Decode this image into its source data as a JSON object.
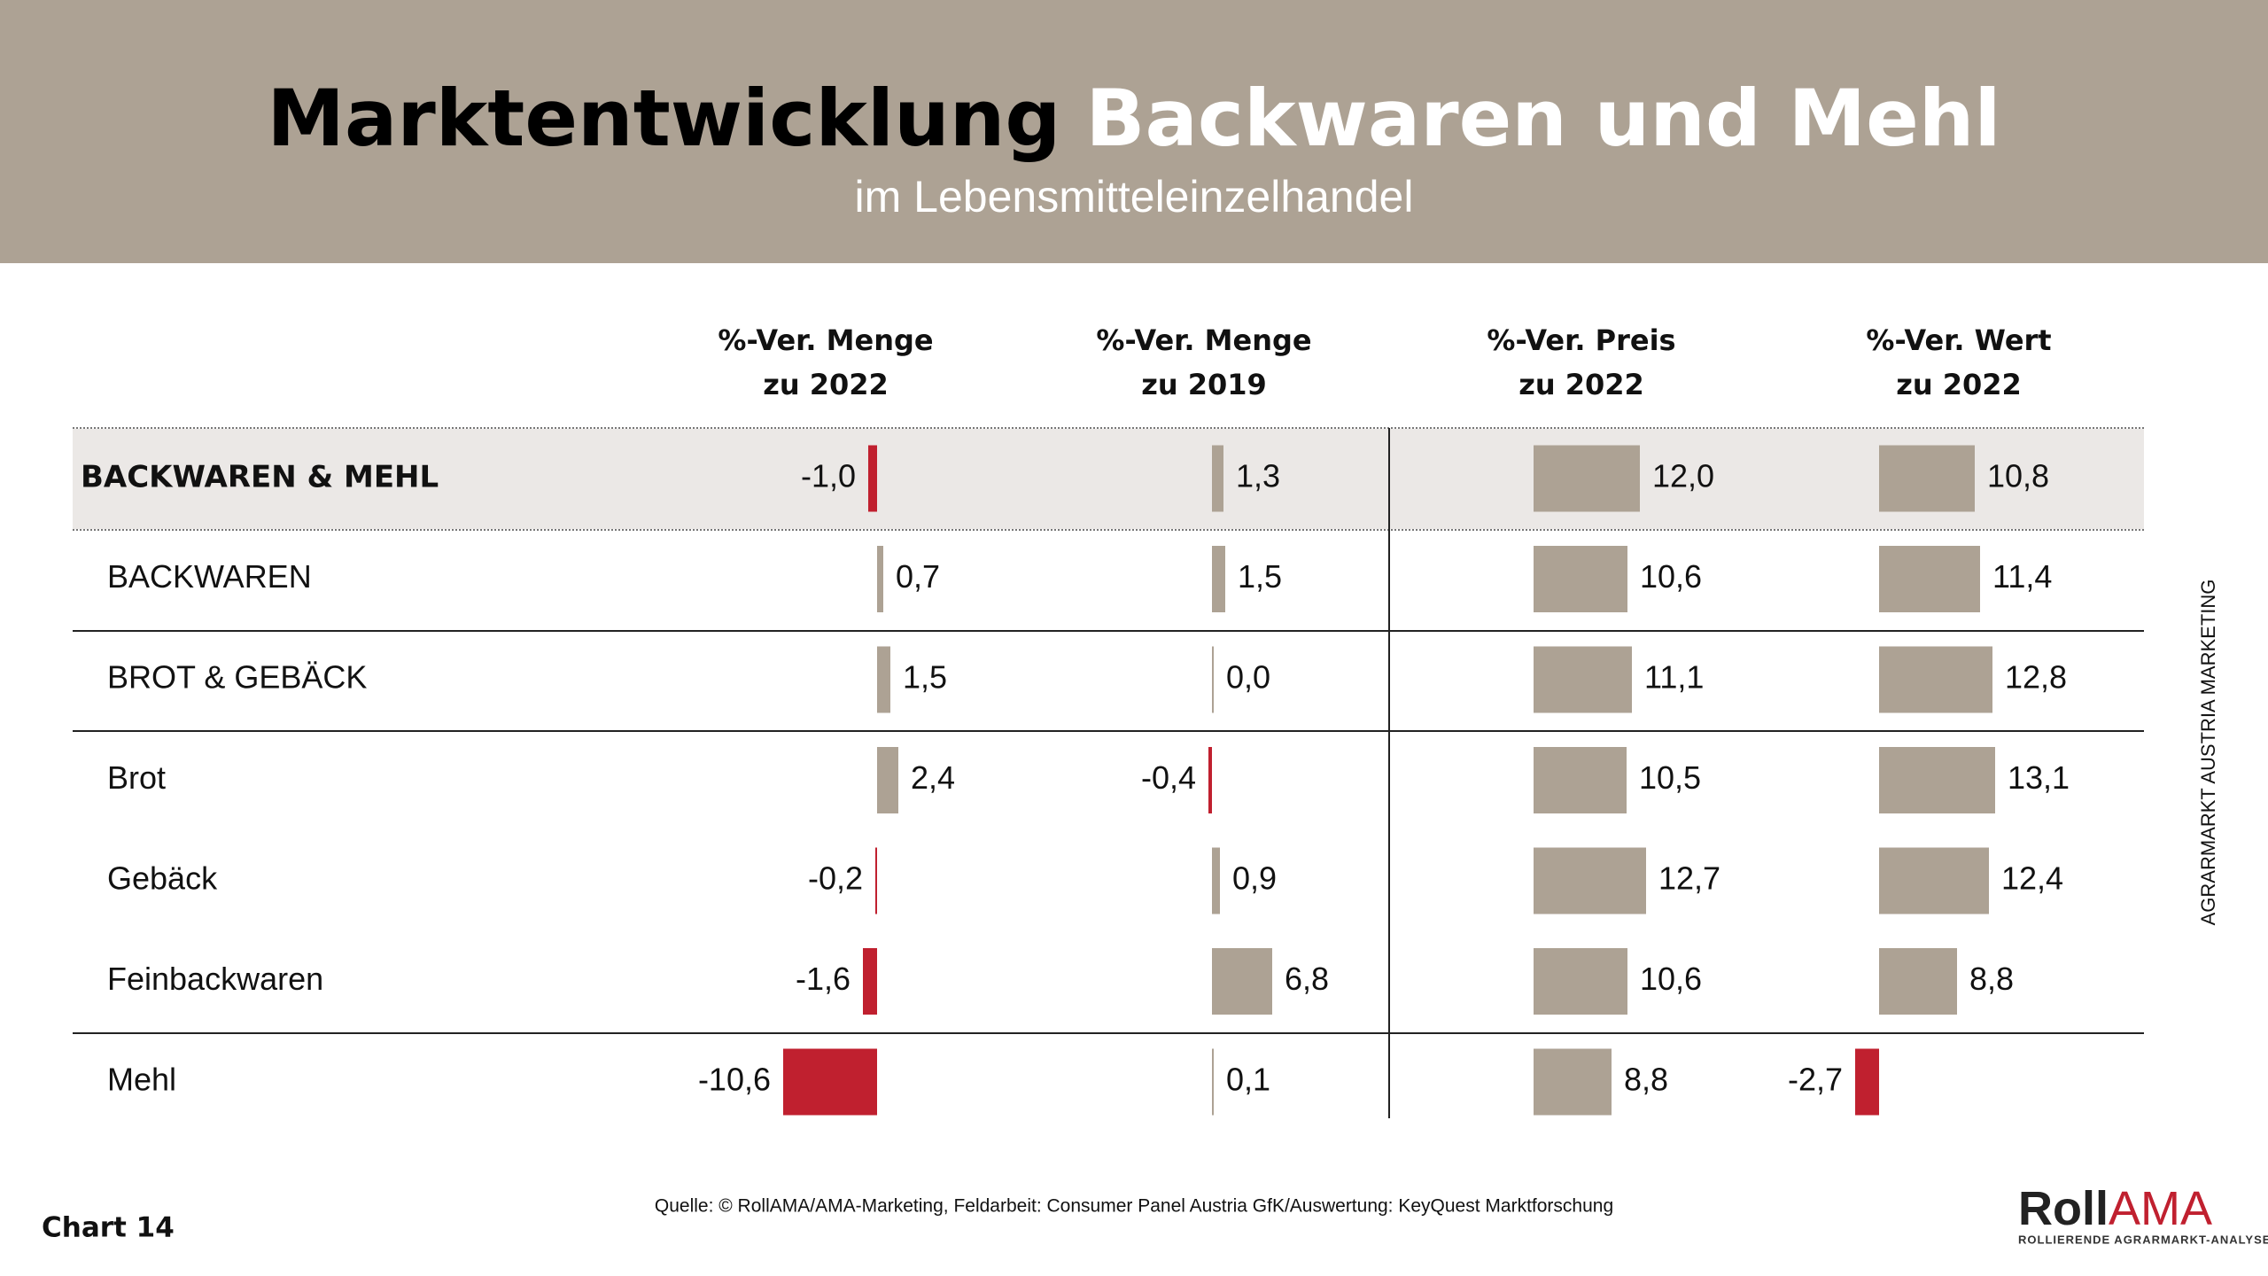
{
  "chart_data": {
    "type": "table-bar",
    "title_dark": "Marktentwicklung",
    "title_light": "Backwaren und Mehl",
    "subtitle": "im Lebensmitteleinzelhandel",
    "categories": [
      "BACKWAREN & MEHL",
      "BACKWAREN",
      "BROT & GEBÄCK",
      "Brot",
      "Gebäck",
      "Feinbackwaren",
      "Mehl"
    ],
    "positive_color": "#ada294",
    "negative_color": "#c0202f",
    "series": [
      {
        "name": "%-Ver. Menge\nzu 2022",
        "values": [
          -1.0,
          0.7,
          1.5,
          2.4,
          -0.2,
          -1.6,
          -10.6
        ],
        "value_labels": [
          "-1,0",
          "0,7",
          "1,5",
          "2,4",
          "-0,2",
          "-1,6",
          "-10,6"
        ]
      },
      {
        "name": "%-Ver. Menge\nzu 2019",
        "values": [
          1.3,
          1.5,
          0.0,
          -0.4,
          0.9,
          6.8,
          0.1
        ],
        "value_labels": [
          "1,3",
          "1,5",
          "0,0",
          "-0,4",
          "0,9",
          "6,8",
          "0,1"
        ]
      },
      {
        "name": "%-Ver. Preis\nzu 2022",
        "values": [
          12.0,
          10.6,
          11.1,
          10.5,
          12.7,
          10.6,
          8.8
        ],
        "value_labels": [
          "12,0",
          "10,6",
          "11,1",
          "10,5",
          "12,7",
          "10,6",
          "8,8"
        ]
      },
      {
        "name": "%-Ver. Wert\nzu 2022",
        "values": [
          10.8,
          11.4,
          12.8,
          13.1,
          12.4,
          8.8,
          -2.7
        ],
        "value_labels": [
          "10,8",
          "11,4",
          "12,8",
          "13,1",
          "12,4",
          "8,8",
          "-2,7"
        ]
      }
    ],
    "side_note": "AGRARMARKT AUSTRIA MARKETING",
    "source": "Quelle: © RollAMA/AMA-Marketing, Feldarbeit: Consumer Panel Austria GfK/Auswertung: KeyQuest Marktforschung",
    "chart_number": "Chart 14",
    "logo_dark": "Roll",
    "logo_red": "AMA",
    "logo_tagline": "ROLLIERENDE AGRARMARKT-ANALYSE"
  }
}
